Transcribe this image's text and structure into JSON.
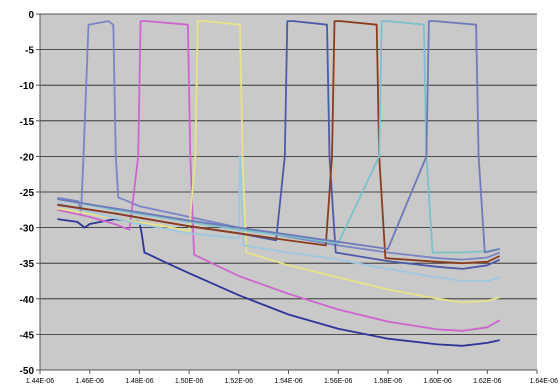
{
  "chart_data": {
    "type": "line",
    "title": "",
    "xlabel": "",
    "ylabel": "",
    "xlim": [
      1.44e-06,
      1.64e-06
    ],
    "ylim": [
      -50,
      0
    ],
    "y_ticks": [
      0,
      -5,
      -10,
      -15,
      -20,
      -25,
      -30,
      -35,
      -40,
      -45,
      -50
    ],
    "y_tick_labels": [
      "0",
      "-5",
      "-10",
      "-15",
      "-20",
      "-25",
      "-30",
      "-35",
      "-40",
      "-45",
      "-50"
    ],
    "x_ticks": [
      1.44e-06,
      1.46e-06,
      1.48e-06,
      1.5e-06,
      1.52e-06,
      1.54e-06,
      1.56e-06,
      1.58e-06,
      1.6e-06,
      1.62e-06,
      1.64e-06
    ],
    "x_tick_labels": [
      "1.44E-06",
      "1.46E-06",
      "1.48E-06",
      "1.50E-06",
      "1.52E-06",
      "1.54E-06",
      "1.56E-06",
      "1.58E-06",
      "1.60E-06",
      "1.62E-06",
      "1.64E-06"
    ],
    "grid": "horizontal",
    "legend": "none",
    "background": "#c9c9c9",
    "series": [
      {
        "color": "#7b84c4",
        "x": [
          1.447e-06,
          1.4555e-06,
          1.4565e-06,
          1.4575e-06,
          1.4595e-06,
          1.4675e-06,
          1.4695e-06,
          1.4705e-06,
          1.4715e-06,
          1.474e-06,
          1.48e-06,
          1.5e-06,
          1.52e-06,
          1.54e-06,
          1.56e-06,
          1.58e-06,
          1.6e-06,
          1.61e-06,
          1.62e-06,
          1.625e-06
        ],
        "y": [
          -25.8,
          -26.3,
          -28,
          -20,
          -1.5,
          -1.0,
          -1.5,
          -20,
          -25.8,
          -26.1,
          -27.0,
          -28.5,
          -30.0,
          -31.3,
          -32.5,
          -33.5,
          -34.3,
          -34.5,
          -34.2,
          -33.5
        ]
      },
      {
        "color": "#2d3596",
        "x": [
          1.447e-06,
          1.455e-06,
          1.458e-06,
          1.46e-06,
          1.47e-06,
          1.48e-06,
          1.481e-06,
          1.482e-06,
          1.484e-06,
          1.49e-06,
          1.5e-06,
          1.52e-06,
          1.54e-06,
          1.56e-06,
          1.58e-06,
          1.6e-06,
          1.61e-06,
          1.62e-06,
          1.625e-06
        ],
        "y": [
          -28.8,
          -29.2,
          -30.0,
          -29.5,
          -28.8,
          -29.2,
          -31.0,
          -33.5,
          -33.8,
          -34.8,
          -36.4,
          -39.5,
          -42.2,
          -44.2,
          -45.6,
          -46.4,
          -46.6,
          -46.2,
          -45.8
        ]
      },
      {
        "color": "#cc66cc",
        "x": [
          1.447e-06,
          1.46e-06,
          1.47e-06,
          1.476e-06,
          1.4795e-06,
          1.4805e-06,
          1.483e-06,
          1.4995e-06,
          1.5005e-06,
          1.502e-06,
          1.52e-06,
          1.54e-06,
          1.56e-06,
          1.58e-06,
          1.6e-06,
          1.61e-06,
          1.62e-06,
          1.625e-06
        ],
        "y": [
          -27.5,
          -28.5,
          -29.5,
          -30.3,
          -20,
          -1.0,
          -1.0,
          -1.5,
          -20,
          -33.8,
          -36.8,
          -39.3,
          -41.5,
          -43.2,
          -44.3,
          -44.5,
          -44.0,
          -43.0
        ]
      },
      {
        "color": "#e7e38a",
        "x": [
          1.447e-06,
          1.47e-06,
          1.49e-06,
          1.5e-06,
          1.5025e-06,
          1.5035e-06,
          1.506e-06,
          1.5205e-06,
          1.5215e-06,
          1.523e-06,
          1.54e-06,
          1.56e-06,
          1.58e-06,
          1.6e-06,
          1.61e-06,
          1.62e-06,
          1.625e-06
        ],
        "y": [
          -27.3,
          -28.7,
          -29.8,
          -30.5,
          -20,
          -1.0,
          -1.0,
          -1.5,
          -20,
          -33.5,
          -35.3,
          -37.0,
          -38.7,
          -40.0,
          -40.5,
          -40.3,
          -39.8
        ]
      },
      {
        "color": "#9ec8e0",
        "x": [
          1.447e-06,
          1.46e-06,
          1.48e-06,
          1.5e-06,
          1.52e-06,
          1.5205e-06,
          1.522e-06,
          1.54e-06,
          1.56e-06,
          1.58e-06,
          1.6e-06,
          1.61e-06,
          1.62e-06,
          1.625e-06
        ],
        "y": [
          -26.5,
          -27.8,
          -29.5,
          -30.8,
          -31.5,
          -20,
          -32.5,
          -33.5,
          -34.5,
          -35.8,
          -37.0,
          -37.5,
          -37.5,
          -37.0
        ]
      },
      {
        "color": "#4d5aa8",
        "x": [
          1.447e-06,
          1.47e-06,
          1.5e-06,
          1.52e-06,
          1.535e-06,
          1.5385e-06,
          1.5395e-06,
          1.542e-06,
          1.5555e-06,
          1.5565e-06,
          1.559e-06,
          1.58e-06,
          1.6e-06,
          1.61e-06,
          1.62e-06,
          1.625e-06
        ],
        "y": [
          -26.8,
          -28.0,
          -29.8,
          -30.8,
          -31.8,
          -20,
          -1.0,
          -1.0,
          -1.5,
          -20,
          -33.5,
          -34.7,
          -35.5,
          -35.8,
          -35.3,
          -34.5
        ]
      },
      {
        "color": "#8a3d1e",
        "x": [
          1.447e-06,
          1.47e-06,
          1.5e-06,
          1.52e-06,
          1.54e-06,
          1.555e-06,
          1.5575e-06,
          1.5585e-06,
          1.561e-06,
          1.5755e-06,
          1.5765e-06,
          1.579e-06,
          1.6e-06,
          1.61e-06,
          1.62e-06,
          1.625e-06
        ],
        "y": [
          -26.8,
          -28.0,
          -29.8,
          -30.8,
          -31.8,
          -32.5,
          -20,
          -1.0,
          -1.0,
          -1.5,
          -20,
          -34.3,
          -34.8,
          -35.0,
          -34.8,
          -34.0
        ]
      },
      {
        "color": "#7cc1c8",
        "x": [
          1.447e-06,
          1.47e-06,
          1.5e-06,
          1.52e-06,
          1.54e-06,
          1.56e-06,
          1.5765e-06,
          1.5775e-06,
          1.58e-06,
          1.5945e-06,
          1.5955e-06,
          1.598e-06,
          1.61e-06,
          1.62e-06,
          1.625e-06
        ],
        "y": [
          -26.0,
          -27.5,
          -29.2,
          -30.3,
          -31.2,
          -32.2,
          -20,
          -1.0,
          -1.0,
          -1.5,
          -20,
          -33.5,
          -33.5,
          -33.3,
          -33.0
        ]
      },
      {
        "color": "#6f7ab8",
        "x": [
          1.447e-06,
          1.47e-06,
          1.5e-06,
          1.52e-06,
          1.54e-06,
          1.56e-06,
          1.58e-06,
          1.5955e-06,
          1.5965e-06,
          1.599e-06,
          1.6155e-06,
          1.6165e-06,
          1.619e-06,
          1.625e-06
        ],
        "y": [
          -26.0,
          -27.3,
          -29.0,
          -30.0,
          -31.0,
          -32.0,
          -33.0,
          -20,
          -1.0,
          -1.0,
          -1.5,
          -20,
          -33.5,
          -33.0
        ]
      }
    ]
  }
}
